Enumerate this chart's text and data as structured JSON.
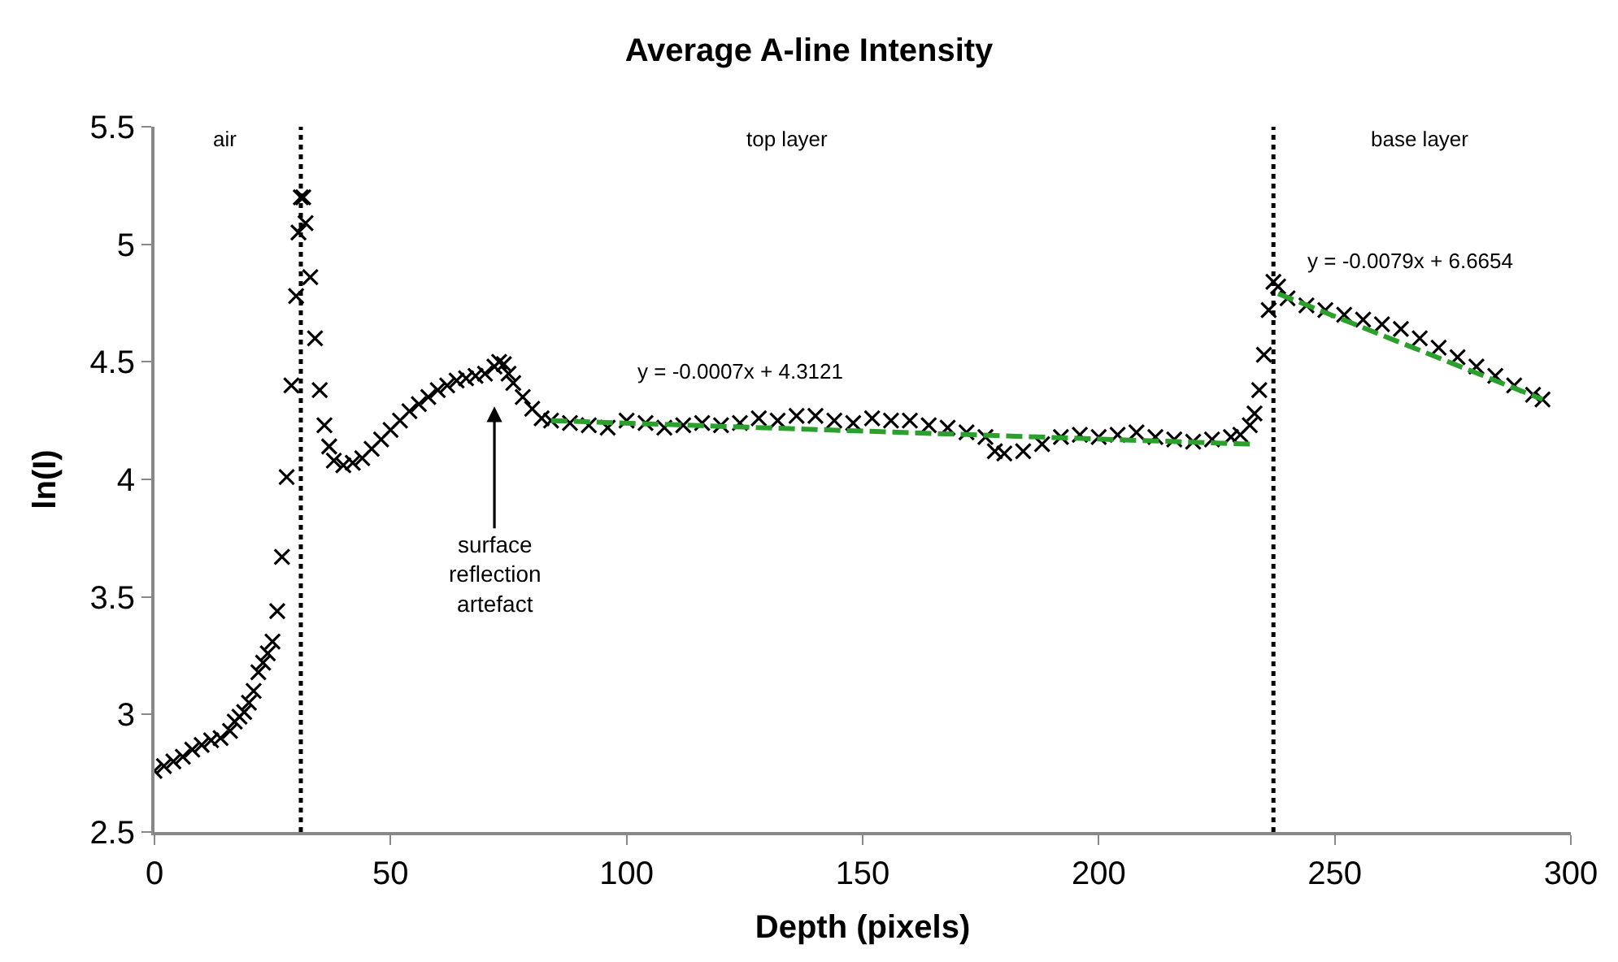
{
  "chart_data": {
    "type": "scatter",
    "title": "Average A-line Intensity",
    "xlabel": "Depth (pixels)",
    "ylabel": "ln(I)",
    "xlim": [
      0,
      300
    ],
    "xticks": [
      0,
      50,
      100,
      150,
      200,
      250,
      300
    ],
    "ylim": [
      2.5,
      5.5
    ],
    "yticks": [
      2.5,
      3,
      3.5,
      4,
      4.5,
      5,
      5.5
    ],
    "series": [
      {
        "color": "#000000",
        "marker": "cross",
        "x": [
          0,
          2,
          4,
          6,
          8,
          10,
          12,
          14,
          16,
          17,
          18,
          19,
          20,
          21,
          22,
          23,
          24,
          25,
          26,
          27,
          28,
          29,
          30,
          30.5,
          31,
          31.5,
          32,
          33,
          34,
          35,
          36,
          37,
          38,
          40,
          42,
          44,
          46,
          48,
          50,
          52,
          54,
          56,
          58,
          60,
          62,
          64,
          66,
          68,
          70,
          72,
          73,
          74,
          75,
          76,
          78,
          80,
          82,
          84,
          88,
          92,
          96,
          100,
          104,
          108,
          112,
          116,
          120,
          124,
          128,
          132,
          136,
          140,
          144,
          148,
          152,
          156,
          160,
          164,
          168,
          172,
          176,
          178,
          180,
          184,
          188,
          192,
          196,
          200,
          204,
          208,
          212,
          216,
          220,
          224,
          228,
          230,
          232,
          233,
          234,
          235,
          236,
          237,
          238,
          240,
          244,
          248,
          252,
          256,
          260,
          264,
          268,
          272,
          276,
          280,
          284,
          288,
          292,
          294
        ],
        "values": [
          2.76,
          2.78,
          2.8,
          2.82,
          2.85,
          2.87,
          2.89,
          2.9,
          2.93,
          2.97,
          2.99,
          3.01,
          3.05,
          3.1,
          3.18,
          3.22,
          3.26,
          3.31,
          3.44,
          3.67,
          4.01,
          4.4,
          4.78,
          5.05,
          5.2,
          5.2,
          5.09,
          4.86,
          4.6,
          4.38,
          4.23,
          4.14,
          4.08,
          4.06,
          4.07,
          4.09,
          4.13,
          4.17,
          4.21,
          4.25,
          4.29,
          4.32,
          4.35,
          4.38,
          4.4,
          4.42,
          4.43,
          4.44,
          4.45,
          4.48,
          4.5,
          4.49,
          4.45,
          4.41,
          4.35,
          4.3,
          4.26,
          4.25,
          4.24,
          4.23,
          4.22,
          4.25,
          4.24,
          4.22,
          4.23,
          4.24,
          4.23,
          4.24,
          4.26,
          4.25,
          4.27,
          4.27,
          4.25,
          4.24,
          4.26,
          4.25,
          4.25,
          4.23,
          4.22,
          4.2,
          4.18,
          4.12,
          4.11,
          4.12,
          4.15,
          4.18,
          4.19,
          4.18,
          4.19,
          4.2,
          4.18,
          4.17,
          4.16,
          4.17,
          4.18,
          4.19,
          4.23,
          4.28,
          4.38,
          4.53,
          4.72,
          4.84,
          4.82,
          4.77,
          4.74,
          4.72,
          4.7,
          4.68,
          4.66,
          4.64,
          4.6,
          4.56,
          4.52,
          4.48,
          4.44,
          4.4,
          4.36,
          4.34
        ]
      },
      {
        "type": "line",
        "color": "#2ca02c",
        "line_style": "dashed",
        "x": [
          84,
          232
        ],
        "values": [
          4.25,
          4.15
        ]
      },
      {
        "type": "line",
        "color": "#2ca02c",
        "line_style": "dashed",
        "x": [
          238,
          294
        ],
        "values": [
          4.79,
          4.34
        ]
      }
    ],
    "ref_lines": [
      {
        "axis": "x",
        "value": 31,
        "line_style": "dotted",
        "color": "#000000"
      },
      {
        "axis": "x",
        "value": 237,
        "line_style": "dotted",
        "color": "#000000"
      }
    ],
    "annotations": [
      "air",
      "top layer",
      "base layer",
      "y = -0.0007x + 4.3121",
      "y = -0.0079x + 6.6654",
      "surface\nreflection\nartefact"
    ]
  }
}
